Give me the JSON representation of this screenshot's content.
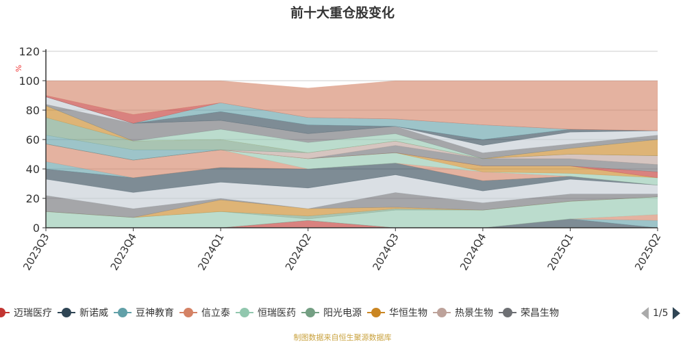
{
  "chart_data": {
    "type": "area",
    "stacked": true,
    "title": "前十大重仓股变化",
    "ylabel": "%",
    "ylim": [
      0,
      120
    ],
    "yticks": [
      0,
      20,
      40,
      60,
      80,
      100,
      120
    ],
    "grid": true,
    "categories": [
      "2023Q3",
      "2023Q4",
      "2024Q1",
      "2024Q2",
      "2024Q3",
      "2024Q4",
      "2025Q1",
      "2025Q2"
    ],
    "series": [
      {
        "color": "#c23531",
        "values": [
          0,
          0,
          0,
          5,
          0,
          0,
          0,
          0
        ]
      },
      {
        "color": "#2f4554",
        "values": [
          0,
          0,
          0,
          0,
          0,
          0,
          6,
          0
        ]
      },
      {
        "color": "#61a0a8",
        "values": [
          0,
          0,
          0,
          0,
          0,
          0,
          0,
          5
        ]
      },
      {
        "color": "#d48265",
        "values": [
          0,
          0,
          0,
          0,
          0,
          0,
          0,
          4
        ]
      },
      {
        "color": "#91c7ae",
        "values": [
          11,
          7,
          11,
          1,
          12,
          12,
          12,
          12
        ]
      },
      {
        "color": "#749f83",
        "values": [
          0,
          0,
          0,
          2,
          1,
          0,
          0,
          0
        ]
      },
      {
        "color": "#ca8622",
        "values": [
          0,
          0,
          8,
          5,
          1,
          0,
          0,
          0
        ]
      },
      {
        "color": "#6e7074",
        "values": [
          11,
          6,
          1,
          0,
          10,
          5,
          5,
          2
        ]
      },
      {
        "color": "#c4ccd3",
        "values": [
          11,
          11,
          11,
          14,
          12,
          8,
          10,
          6
        ]
      },
      {
        "color": "#2f4554",
        "values": [
          7,
          10,
          10,
          13,
          8,
          7,
          2,
          0
        ]
      },
      {
        "color": "#61a0a8",
        "values": [
          5,
          0,
          0,
          0,
          0,
          0,
          0,
          0
        ]
      },
      {
        "color": "#d48265",
        "values": [
          12,
          12,
          12,
          0,
          0,
          6,
          0,
          0
        ]
      },
      {
        "color": "#91c7ae",
        "values": [
          0,
          0,
          0,
          7,
          7,
          0,
          2,
          5
        ]
      },
      {
        "color": "#ca8622",
        "values": [
          0,
          0,
          0,
          0,
          0,
          4,
          5,
          0
        ]
      },
      {
        "color": "#c23531",
        "values": [
          0,
          0,
          0,
          0,
          0,
          0,
          0,
          4
        ]
      },
      {
        "color": "#6e7074",
        "values": [
          0,
          0,
          0,
          0,
          5,
          5,
          5,
          5
        ]
      },
      {
        "color": "#bda29a",
        "values": [
          0,
          0,
          0,
          4,
          3,
          0,
          3,
          6
        ]
      },
      {
        "color": "#61a0a8",
        "values": [
          6,
          7,
          0,
          0,
          0,
          0,
          0,
          0
        ]
      },
      {
        "color": "#749f83",
        "values": [
          12,
          6,
          7,
          0,
          0,
          0,
          0,
          0
        ]
      },
      {
        "color": "#ca8622",
        "values": [
          8,
          0,
          0,
          0,
          0,
          0,
          4,
          11
        ]
      },
      {
        "color": "#91c7ae",
        "values": [
          0,
          0,
          7,
          7,
          5,
          0,
          0,
          0
        ]
      },
      {
        "color": "#6e7074",
        "values": [
          1,
          12,
          6,
          6,
          5,
          4,
          3,
          3
        ]
      },
      {
        "color": "#c4ccd3",
        "values": [
          5,
          0,
          0,
          0,
          0,
          5,
          8,
          3
        ]
      },
      {
        "color": "#2f4554",
        "values": [
          0,
          0,
          6,
          6,
          0,
          4,
          2,
          0
        ]
      },
      {
        "color": "#61a0a8",
        "values": [
          0,
          0,
          6,
          5,
          5,
          10,
          0,
          0
        ]
      },
      {
        "color": "#c23531",
        "values": [
          1,
          6,
          0,
          0,
          0,
          0,
          0,
          0
        ]
      },
      {
        "color": "#d48265",
        "values": [
          10,
          23,
          15,
          20,
          26,
          30,
          33,
          34
        ]
      }
    ]
  },
  "legend": {
    "items": [
      {
        "name": "迈瑞医疗",
        "color": "#c23531"
      },
      {
        "name": "新诺威",
        "color": "#2f4554"
      },
      {
        "name": "豆神教育",
        "color": "#61a0a8"
      },
      {
        "name": "信立泰",
        "color": "#d48265"
      },
      {
        "name": "恒瑞医药",
        "color": "#91c7ae"
      },
      {
        "name": "阳光电源",
        "color": "#749f83"
      },
      {
        "name": "华恒生物",
        "color": "#ca8622"
      },
      {
        "name": "热景生物",
        "color": "#bda29a"
      },
      {
        "name": "荣昌生物",
        "color": "#6e7074"
      }
    ],
    "page": "1/5"
  },
  "source": "制图数据来自恒生聚源数据库"
}
